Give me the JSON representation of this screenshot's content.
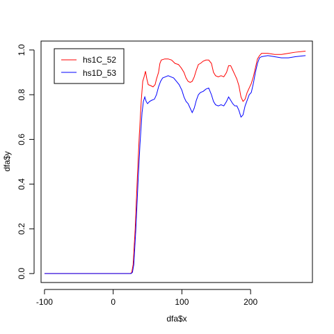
{
  "chart_data": {
    "type": "line",
    "xlabel": "dfa$x",
    "ylabel": "dfa$y",
    "xlim": [
      -105,
      290
    ],
    "ylim": [
      -0.04,
      1.04
    ],
    "x_ticks": [
      -100,
      0,
      100,
      200
    ],
    "y_ticks": [
      0.0,
      0.2,
      0.4,
      0.6,
      0.8,
      1.0
    ],
    "x_tick_labels": [
      "-100",
      "0",
      "100",
      "200"
    ],
    "y_tick_labels": [
      "0.0",
      "0.2",
      "0.4",
      "0.6",
      "0.8",
      "1.0"
    ],
    "legend_position": "top-left",
    "series": [
      {
        "name": "hs1C_52",
        "color": "#ff0000",
        "points": [
          [
            -100,
            0.0
          ],
          [
            25,
            0.0
          ],
          [
            27,
            0.005
          ],
          [
            29,
            0.04
          ],
          [
            32,
            0.2
          ],
          [
            35,
            0.42
          ],
          [
            38,
            0.62
          ],
          [
            41,
            0.78
          ],
          [
            43,
            0.86
          ],
          [
            45,
            0.88
          ],
          [
            47,
            0.905
          ],
          [
            49,
            0.87
          ],
          [
            51,
            0.845
          ],
          [
            55,
            0.84
          ],
          [
            58,
            0.835
          ],
          [
            61,
            0.845
          ],
          [
            63,
            0.87
          ],
          [
            66,
            0.9
          ],
          [
            68,
            0.94
          ],
          [
            70,
            0.955
          ],
          [
            75,
            0.96
          ],
          [
            80,
            0.96
          ],
          [
            85,
            0.955
          ],
          [
            90,
            0.94
          ],
          [
            95,
            0.935
          ],
          [
            99,
            0.92
          ],
          [
            103,
            0.9
          ],
          [
            106,
            0.875
          ],
          [
            109,
            0.86
          ],
          [
            112,
            0.855
          ],
          [
            115,
            0.86
          ],
          [
            118,
            0.88
          ],
          [
            121,
            0.91
          ],
          [
            124,
            0.935
          ],
          [
            127,
            0.94
          ],
          [
            131,
            0.95
          ],
          [
            135,
            0.955
          ],
          [
            139,
            0.955
          ],
          [
            143,
            0.94
          ],
          [
            146,
            0.9
          ],
          [
            149,
            0.885
          ],
          [
            153,
            0.88
          ],
          [
            157,
            0.885
          ],
          [
            161,
            0.88
          ],
          [
            165,
            0.9
          ],
          [
            168,
            0.93
          ],
          [
            171,
            0.93
          ],
          [
            174,
            0.91
          ],
          [
            177,
            0.89
          ],
          [
            180,
            0.87
          ],
          [
            183,
            0.84
          ],
          [
            186,
            0.79
          ],
          [
            189,
            0.77
          ],
          [
            192,
            0.78
          ],
          [
            195,
            0.81
          ],
          [
            198,
            0.83
          ],
          [
            201,
            0.85
          ],
          [
            204,
            0.88
          ],
          [
            207,
            0.92
          ],
          [
            210,
            0.96
          ],
          [
            213,
            0.975
          ],
          [
            216,
            0.985
          ],
          [
            225,
            0.985
          ],
          [
            235,
            0.98
          ],
          [
            245,
            0.98
          ],
          [
            255,
            0.985
          ],
          [
            265,
            0.99
          ],
          [
            280,
            0.995
          ]
        ]
      },
      {
        "name": "hs1D_53",
        "color": "#0000ff",
        "points": [
          [
            -100,
            0.0
          ],
          [
            26,
            0.0
          ],
          [
            28,
            0.005
          ],
          [
            30,
            0.04
          ],
          [
            33,
            0.2
          ],
          [
            36,
            0.4
          ],
          [
            39,
            0.58
          ],
          [
            42,
            0.72
          ],
          [
            44,
            0.77
          ],
          [
            46,
            0.79
          ],
          [
            48,
            0.77
          ],
          [
            50,
            0.76
          ],
          [
            53,
            0.77
          ],
          [
            56,
            0.775
          ],
          [
            60,
            0.78
          ],
          [
            63,
            0.8
          ],
          [
            66,
            0.835
          ],
          [
            69,
            0.86
          ],
          [
            72,
            0.875
          ],
          [
            76,
            0.88
          ],
          [
            80,
            0.885
          ],
          [
            84,
            0.88
          ],
          [
            88,
            0.875
          ],
          [
            92,
            0.86
          ],
          [
            96,
            0.845
          ],
          [
            100,
            0.82
          ],
          [
            103,
            0.79
          ],
          [
            106,
            0.77
          ],
          [
            109,
            0.76
          ],
          [
            112,
            0.74
          ],
          [
            115,
            0.72
          ],
          [
            118,
            0.74
          ],
          [
            121,
            0.775
          ],
          [
            124,
            0.8
          ],
          [
            127,
            0.81
          ],
          [
            131,
            0.815
          ],
          [
            135,
            0.825
          ],
          [
            139,
            0.83
          ],
          [
            143,
            0.8
          ],
          [
            146,
            0.77
          ],
          [
            149,
            0.755
          ],
          [
            153,
            0.75
          ],
          [
            157,
            0.755
          ],
          [
            161,
            0.75
          ],
          [
            165,
            0.77
          ],
          [
            168,
            0.79
          ],
          [
            171,
            0.775
          ],
          [
            174,
            0.76
          ],
          [
            177,
            0.75
          ],
          [
            180,
            0.75
          ],
          [
            183,
            0.73
          ],
          [
            186,
            0.7
          ],
          [
            189,
            0.71
          ],
          [
            192,
            0.75
          ],
          [
            195,
            0.775
          ],
          [
            198,
            0.8
          ],
          [
            201,
            0.81
          ],
          [
            204,
            0.85
          ],
          [
            207,
            0.9
          ],
          [
            210,
            0.94
          ],
          [
            213,
            0.965
          ],
          [
            216,
            0.97
          ],
          [
            225,
            0.975
          ],
          [
            235,
            0.97
          ],
          [
            245,
            0.965
          ],
          [
            255,
            0.965
          ],
          [
            265,
            0.97
          ],
          [
            280,
            0.975
          ]
        ]
      }
    ]
  }
}
